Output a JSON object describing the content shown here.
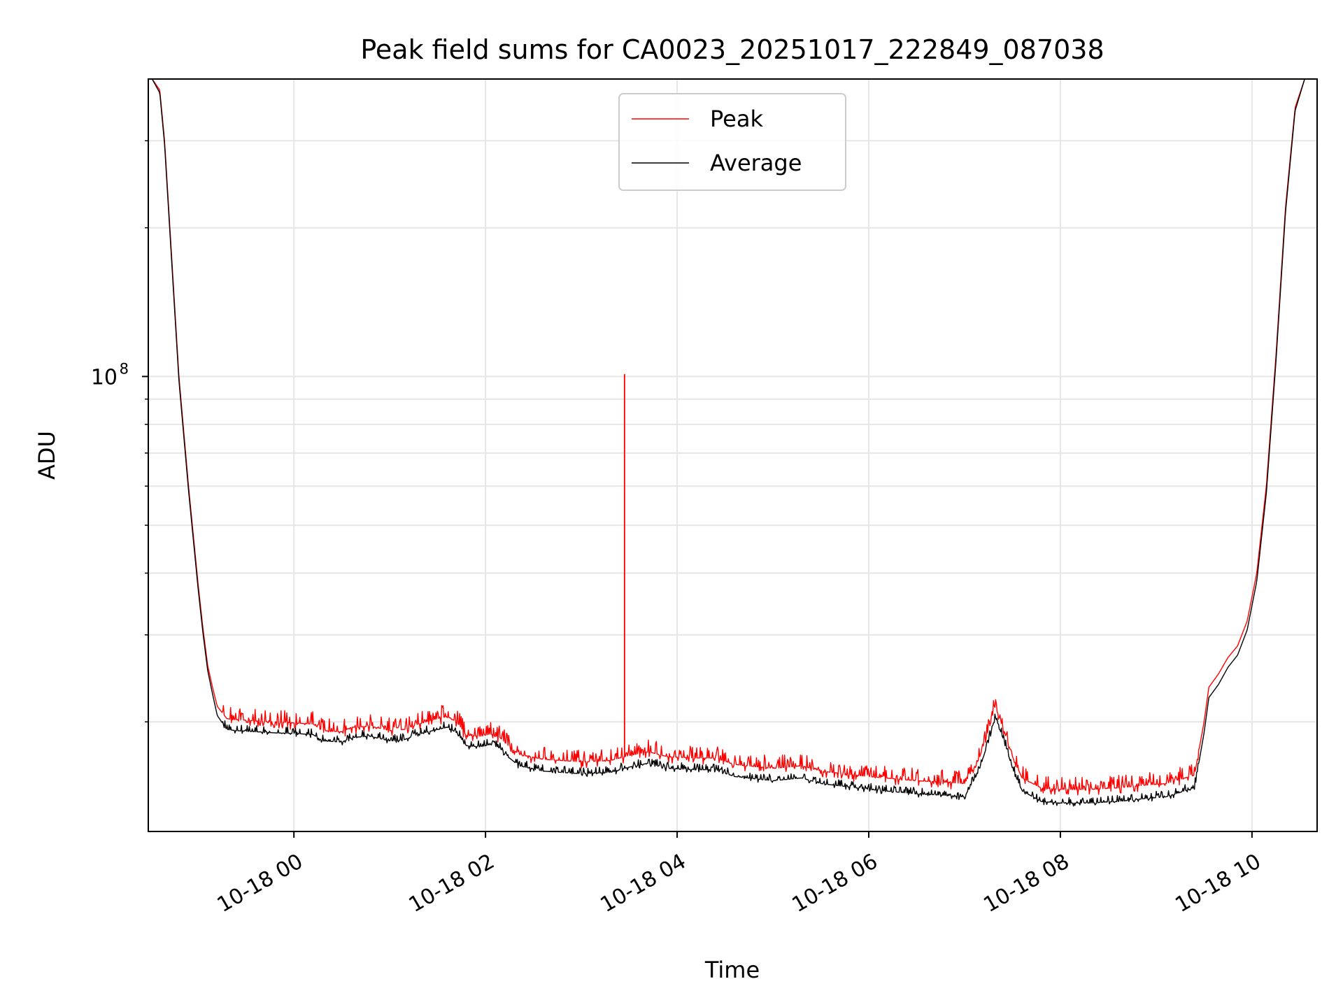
{
  "chart_data": {
    "type": "line",
    "title": "Peak field sums for CA0023_20251017_222849_087038",
    "xlabel": "Time",
    "ylabel": "ADU",
    "y_scale": "log",
    "ylim": [
      12000000,
      400000000
    ],
    "xlim_hours": [
      -1.52,
      10.68
    ],
    "grid": true,
    "legend_position": "upper center",
    "x_ticks": [
      {
        "hour": 0,
        "label": "10-18 00"
      },
      {
        "hour": 2,
        "label": "10-18 02"
      },
      {
        "hour": 4,
        "label": "10-18 04"
      },
      {
        "hour": 6,
        "label": "10-18 06"
      },
      {
        "hour": 8,
        "label": "10-18 08"
      },
      {
        "hour": 10,
        "label": "10-18 10"
      }
    ],
    "y_major_ticks": [
      {
        "value": 100000000,
        "base": "10",
        "exp": "8"
      }
    ],
    "y_minor_ticks": [
      20000000,
      30000000,
      40000000,
      50000000,
      60000000,
      70000000,
      80000000,
      90000000,
      200000000,
      300000000
    ],
    "series": [
      {
        "name": "Peak",
        "color": "#ff0000",
        "noise": 0.06,
        "spike": {
          "hour": 3.45,
          "value": 101000000
        },
        "points": [
          [
            -1.48,
            400000000
          ],
          [
            -1.4,
            380000000
          ],
          [
            -1.35,
            300000000
          ],
          [
            -1.28,
            180000000
          ],
          [
            -1.2,
            100000000
          ],
          [
            -1.1,
            60000000
          ],
          [
            -1.0,
            38000000
          ],
          [
            -0.95,
            31000000
          ],
          [
            -0.9,
            26000000
          ],
          [
            -0.85,
            23500000
          ],
          [
            -0.8,
            21500000
          ],
          [
            -0.7,
            20300000
          ],
          [
            -0.6,
            20200000
          ],
          [
            -0.4,
            20100000
          ],
          [
            -0.2,
            20000000
          ],
          [
            0.0,
            19900000
          ],
          [
            0.2,
            19800000
          ],
          [
            0.3,
            19200000
          ],
          [
            0.5,
            19100000
          ],
          [
            0.6,
            19500000
          ],
          [
            0.8,
            19600000
          ],
          [
            1.0,
            19200000
          ],
          [
            1.15,
            19300000
          ],
          [
            1.3,
            19800000
          ],
          [
            1.5,
            20300000
          ],
          [
            1.6,
            20500000
          ],
          [
            1.7,
            20000000
          ],
          [
            1.8,
            18800000
          ],
          [
            1.95,
            18700000
          ],
          [
            2.05,
            18900000
          ],
          [
            2.15,
            18600000
          ],
          [
            2.25,
            17800000
          ],
          [
            2.35,
            17200000
          ],
          [
            2.6,
            16800000
          ],
          [
            3.0,
            16600000
          ],
          [
            3.3,
            16700000
          ],
          [
            3.5,
            17100000
          ],
          [
            3.7,
            17400000
          ],
          [
            3.9,
            17000000
          ],
          [
            4.2,
            16900000
          ],
          [
            4.4,
            16900000
          ],
          [
            4.6,
            16400000
          ],
          [
            5.0,
            16100000
          ],
          [
            5.3,
            16300000
          ],
          [
            5.5,
            15900000
          ],
          [
            6.0,
            15500000
          ],
          [
            6.5,
            15200000
          ],
          [
            6.8,
            15100000
          ],
          [
            7.0,
            15000000
          ],
          [
            7.15,
            16800000
          ],
          [
            7.25,
            19200000
          ],
          [
            7.32,
            21500000
          ],
          [
            7.42,
            19000000
          ],
          [
            7.5,
            17000000
          ],
          [
            7.6,
            15400000
          ],
          [
            7.8,
            14700000
          ],
          [
            8.0,
            14600000
          ],
          [
            8.3,
            14600000
          ],
          [
            8.6,
            14700000
          ],
          [
            8.9,
            14900000
          ],
          [
            9.1,
            15000000
          ],
          [
            9.3,
            15400000
          ],
          [
            9.4,
            15600000
          ],
          [
            9.5,
            20000000
          ],
          [
            9.55,
            23500000
          ],
          [
            9.65,
            25000000
          ],
          [
            9.75,
            27000000
          ],
          [
            9.85,
            28500000
          ],
          [
            9.95,
            32000000
          ],
          [
            10.05,
            40000000
          ],
          [
            10.15,
            60000000
          ],
          [
            10.25,
            110000000
          ],
          [
            10.35,
            220000000
          ],
          [
            10.45,
            350000000
          ],
          [
            10.55,
            400000000
          ]
        ]
      },
      {
        "name": "Average",
        "color": "#000000",
        "noise": 0.03,
        "points": [
          [
            -1.48,
            400000000
          ],
          [
            -1.4,
            375000000
          ],
          [
            -1.35,
            295000000
          ],
          [
            -1.28,
            176000000
          ],
          [
            -1.2,
            98000000
          ],
          [
            -1.1,
            58800000
          ],
          [
            -1.0,
            37200000
          ],
          [
            -0.95,
            30300000
          ],
          [
            -0.9,
            25400000
          ],
          [
            -0.85,
            22800000
          ],
          [
            -0.8,
            20600000
          ],
          [
            -0.7,
            19300000
          ],
          [
            -0.6,
            19200000
          ],
          [
            -0.4,
            19100000
          ],
          [
            -0.2,
            19000000
          ],
          [
            0.0,
            18950000
          ],
          [
            0.2,
            18850000
          ],
          [
            0.3,
            18300000
          ],
          [
            0.5,
            18200000
          ],
          [
            0.6,
            18600000
          ],
          [
            0.8,
            18700000
          ],
          [
            1.0,
            18300000
          ],
          [
            1.15,
            18400000
          ],
          [
            1.3,
            18900000
          ],
          [
            1.5,
            19300000
          ],
          [
            1.6,
            19500000
          ],
          [
            1.7,
            19000000
          ],
          [
            1.8,
            17900000
          ],
          [
            1.95,
            17800000
          ],
          [
            2.05,
            18000000
          ],
          [
            2.15,
            17700000
          ],
          [
            2.25,
            16900000
          ],
          [
            2.35,
            16300000
          ],
          [
            2.6,
            15900000
          ],
          [
            3.0,
            15700000
          ],
          [
            3.3,
            15800000
          ],
          [
            3.5,
            16200000
          ],
          [
            3.7,
            16500000
          ],
          [
            3.9,
            16100000
          ],
          [
            4.2,
            16000000
          ],
          [
            4.4,
            16000000
          ],
          [
            4.6,
            15500000
          ],
          [
            5.0,
            15200000
          ],
          [
            5.3,
            15400000
          ],
          [
            5.5,
            15000000
          ],
          [
            6.0,
            14600000
          ],
          [
            6.5,
            14300000
          ],
          [
            6.8,
            14200000
          ],
          [
            7.0,
            14100000
          ],
          [
            7.15,
            15900000
          ],
          [
            7.25,
            18300000
          ],
          [
            7.32,
            20500000
          ],
          [
            7.42,
            18100000
          ],
          [
            7.5,
            16100000
          ],
          [
            7.6,
            14500000
          ],
          [
            7.8,
            13800000
          ],
          [
            8.0,
            13700000
          ],
          [
            8.3,
            13700000
          ],
          [
            8.6,
            13800000
          ],
          [
            8.9,
            14000000
          ],
          [
            9.1,
            14100000
          ],
          [
            9.3,
            14500000
          ],
          [
            9.4,
            14700000
          ],
          [
            9.5,
            19000000
          ],
          [
            9.55,
            22400000
          ],
          [
            9.65,
            23800000
          ],
          [
            9.75,
            25800000
          ],
          [
            9.85,
            27300000
          ],
          [
            9.95,
            30700000
          ],
          [
            10.05,
            38500000
          ],
          [
            10.15,
            58000000
          ],
          [
            10.25,
            107000000
          ],
          [
            10.35,
            215000000
          ],
          [
            10.45,
            345000000
          ],
          [
            10.55,
            400000000
          ]
        ]
      }
    ]
  }
}
